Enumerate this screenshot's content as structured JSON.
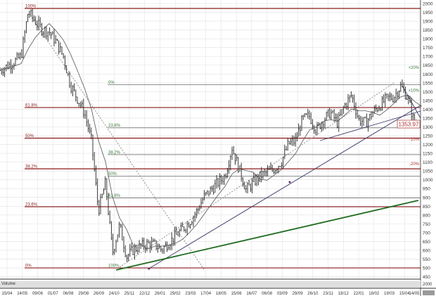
{
  "chart_data": {
    "type": "line",
    "subtype": "ohlc-bars",
    "grid": true,
    "x_tick_labels": [
      "15/04",
      "14/05",
      "09/06",
      "01/07",
      "06/08",
      "29/08",
      "26/09",
      "24/10",
      "25/11",
      "22/12",
      "26/01",
      "29/02",
      "23/03",
      "17/04",
      "18/05",
      "15/06",
      "16/07",
      "06/08",
      "03/09",
      "29/09",
      "26/10",
      "23/11",
      "18/12",
      "22/01",
      "18/02",
      "19/03",
      "15/04",
      "14/05"
    ],
    "y_ticks": [
      2000,
      1950,
      1900,
      1850,
      1800,
      1750,
      1700,
      1650,
      1600,
      1550,
      1500,
      1450,
      1400,
      1350,
      1300,
      1250,
      1200,
      1150,
      1100,
      1050,
      1000,
      950,
      900,
      850,
      800,
      750,
      700,
      650,
      600,
      550,
      500,
      450
    ],
    "ylim": [
      450,
      2000
    ],
    "close": [
      1621,
      1645,
      1669,
      1701,
      1952,
      1900,
      1852,
      1840,
      1781,
      1701,
      1541,
      1461,
      1382,
      1222,
      823,
      983,
      584,
      743,
      564,
      604,
      624,
      636,
      632,
      604,
      644,
      683,
      723,
      763,
      823,
      903,
      943,
      983,
      1022,
      1182,
      1062,
      943,
      983,
      1022,
      1042,
      1062,
      1102,
      1202,
      1222,
      1342,
      1362,
      1282,
      1342,
      1382,
      1322,
      1421,
      1481,
      1342,
      1322,
      1382,
      1421,
      1461,
      1469,
      1533,
      1461,
      1310,
      1362
    ],
    "last_price_label": "1353.97",
    "fib_retracement_major": {
      "color": "#8b1a1a",
      "levels": [
        {
          "label": "100%",
          "value": 1972
        },
        {
          "label": "61.8%",
          "value": 1410
        },
        {
          "label": "50%",
          "value": 1236
        },
        {
          "label": "38.2%",
          "value": 1062
        },
        {
          "label": "23.6%",
          "value": 847
        },
        {
          "label": "0%",
          "value": 500
        }
      ]
    },
    "fib_retracement_minor": {
      "color": "#3a7a3a",
      "levels": [
        {
          "label": "0%",
          "value": 1540
        },
        {
          "label": "23.6%",
          "value": 1295
        },
        {
          "label": "38.2%",
          "value": 1143
        },
        {
          "label": "50%",
          "value": 1020
        },
        {
          "label": "61.8%",
          "value": 897
        },
        {
          "label": "100%",
          "value": 500
        }
      ]
    },
    "percent_markers": [
      {
        "label": "+20%",
        "value": 1638,
        "color": "#3a7a3a"
      },
      {
        "label": "+10%",
        "value": 1508,
        "color": "#3a7a3a"
      },
      {
        "label": "-10%",
        "value": 1230,
        "color": "#b03030"
      },
      {
        "label": "-20%",
        "value": 1090,
        "color": "#b03030"
      }
    ],
    "volume_panel": {
      "label": "Volume",
      "tick": "2000"
    }
  },
  "colors": {
    "grid": "#dcdcdc",
    "price": "#222222",
    "trend_green": "#1f6b1f",
    "trend_blue": "#3a3a6a",
    "ma": "#555555"
  }
}
